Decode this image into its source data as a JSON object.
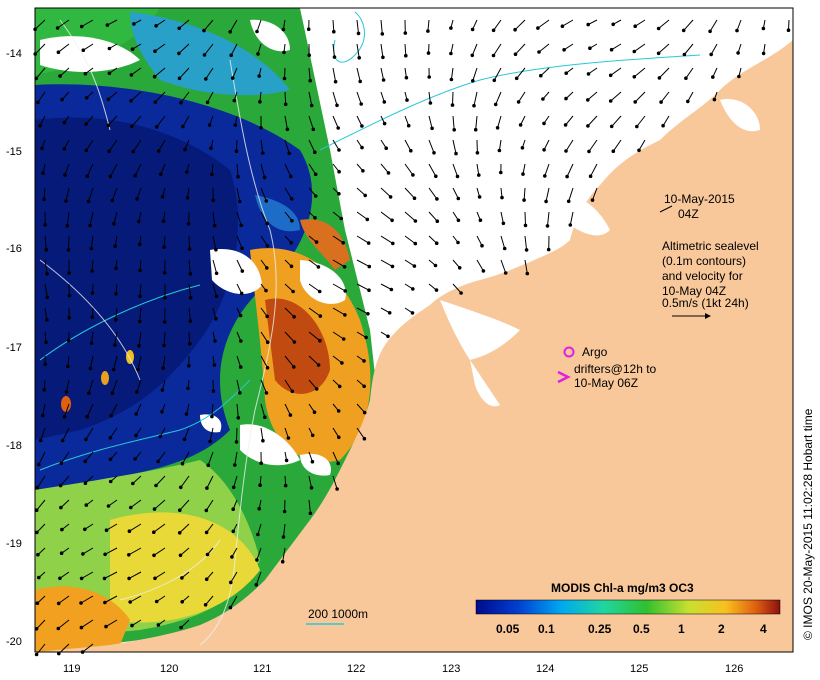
{
  "map": {
    "date_title": "10-May-2015",
    "time_title": "04Z",
    "altimetry_lines": [
      "Altimetric sealevel",
      "(0.1m contours)",
      "and velocity for",
      "10-May 04Z",
      "0.5m/s (1kt 24h)"
    ],
    "argo_label": "Argo",
    "drifters_lines": [
      "drifters@12h to",
      "10-May 06Z"
    ],
    "depth_contours_label": "200  1000m",
    "colorbar_title": "MODIS Chl-a mg/m3 OC3",
    "colorbar_ticks": [
      "0.05",
      "0.1",
      "0.25",
      "0.5",
      "1",
      "2",
      "4"
    ],
    "credit": "© IMOS 20-May-2015 11:02:28 Hobart time",
    "lon_ticks": [
      "119",
      "120",
      "121",
      "122",
      "123",
      "124",
      "125",
      "126"
    ],
    "lat_ticks": [
      "-14",
      "-15",
      "-16",
      "-17",
      "-18",
      "-19",
      "-20"
    ],
    "colors": {
      "land": "#f8c89b",
      "argo": "#e020e0",
      "contour": "#27c9d6",
      "arrow": "#000000"
    }
  }
}
